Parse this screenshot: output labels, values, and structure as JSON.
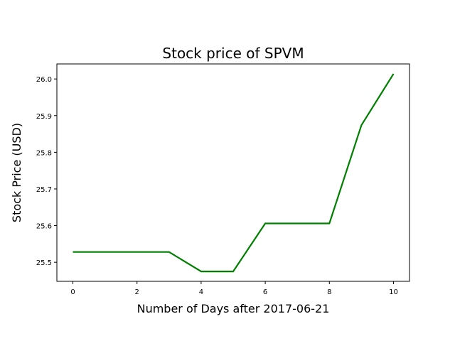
{
  "chart_data": {
    "type": "line",
    "title": "Stock price of SPVM",
    "xlabel": "Number of Days after 2017-06-21",
    "ylabel": "Stock Price (USD)",
    "x": [
      0,
      1,
      2,
      3,
      4,
      5,
      6,
      7,
      8,
      9,
      10
    ],
    "series": [
      {
        "values": [
          25.528,
          25.528,
          25.528,
          25.528,
          25.475,
          25.475,
          25.606,
          25.606,
          25.606,
          25.874,
          26.014
        ],
        "color": "#008000"
      }
    ],
    "xlim": [
      -0.5,
      10.5
    ],
    "ylim": [
      25.448,
      26.041
    ],
    "xticks": [
      0,
      2,
      4,
      6,
      8,
      10
    ],
    "xtick_labels": [
      "0",
      "2",
      "4",
      "6",
      "8",
      "10"
    ],
    "yticks": [
      25.5,
      25.6,
      25.7,
      25.8,
      25.9,
      26.0
    ],
    "ytick_labels": [
      "25.5",
      "25.6",
      "25.7",
      "25.8",
      "25.9",
      "26.0"
    ],
    "grid": false
  }
}
